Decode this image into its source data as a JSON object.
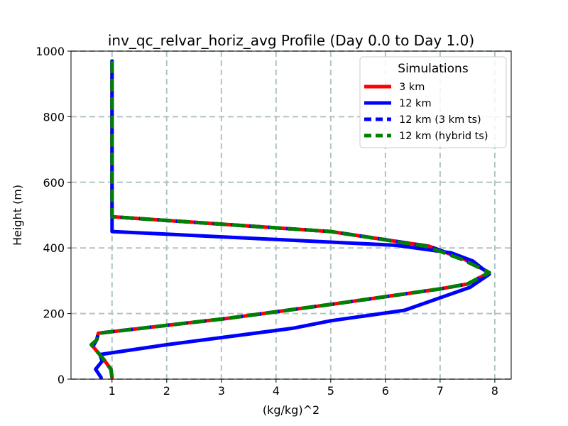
{
  "chart_data": {
    "type": "line",
    "title": "inv_qc_relvar_horiz_avg Profile (Day 0.0 to Day 1.0)",
    "xlabel": "(kg/kg)^2",
    "ylabel": "Height (m)",
    "xlim": [
      0.25,
      8.3
    ],
    "ylim": [
      0,
      1000
    ],
    "xticks": [
      1,
      2,
      3,
      4,
      5,
      6,
      7,
      8
    ],
    "yticks": [
      0,
      200,
      400,
      600,
      800,
      1000
    ],
    "grid": true,
    "legend": {
      "title": "Simulations",
      "placement": "top-right"
    },
    "series": [
      {
        "name": "3 km",
        "color": "#ff0000",
        "style": "solid",
        "points": [
          [
            1.0,
            5
          ],
          [
            0.98,
            30
          ],
          [
            0.85,
            60
          ],
          [
            0.65,
            100
          ],
          [
            0.72,
            120
          ],
          [
            0.75,
            140
          ],
          [
            3.1,
            185
          ],
          [
            5.1,
            230
          ],
          [
            7.0,
            275
          ],
          [
            7.5,
            290
          ],
          [
            7.9,
            325
          ],
          [
            7.45,
            365
          ],
          [
            6.8,
            405
          ],
          [
            5.0,
            450
          ],
          [
            1.0,
            495
          ],
          [
            1.0,
            600
          ],
          [
            1.0,
            800
          ],
          [
            1.0,
            970
          ]
        ]
      },
      {
        "name": "12 km",
        "color": "#0000ff",
        "style": "solid",
        "points": [
          [
            0.8,
            5
          ],
          [
            0.7,
            30
          ],
          [
            0.82,
            55
          ],
          [
            0.78,
            75
          ],
          [
            2.0,
            105
          ],
          [
            4.3,
            155
          ],
          [
            5.0,
            178
          ],
          [
            6.35,
            210
          ],
          [
            7.55,
            280
          ],
          [
            7.9,
            320
          ],
          [
            7.6,
            360
          ],
          [
            7.2,
            385
          ],
          [
            6.2,
            408
          ],
          [
            1.0,
            450
          ],
          [
            1.0,
            600
          ],
          [
            1.0,
            800
          ],
          [
            1.0,
            970
          ]
        ]
      },
      {
        "name": "12 km (3 km ts)",
        "color": "#0000ff",
        "style": "dashed",
        "points": [
          [
            1.0,
            5
          ],
          [
            0.98,
            30
          ],
          [
            0.85,
            60
          ],
          [
            0.65,
            100
          ],
          [
            0.72,
            120
          ],
          [
            0.75,
            140
          ],
          [
            3.1,
            185
          ],
          [
            5.1,
            230
          ],
          [
            7.0,
            275
          ],
          [
            7.5,
            290
          ],
          [
            7.9,
            325
          ],
          [
            7.45,
            365
          ],
          [
            6.8,
            405
          ],
          [
            5.0,
            450
          ],
          [
            1.0,
            495
          ],
          [
            1.0,
            600
          ],
          [
            1.0,
            800
          ],
          [
            1.0,
            970
          ]
        ]
      },
      {
        "name": "12 km (hybrid ts)",
        "color": "#008000",
        "style": "dashed",
        "points": [
          [
            1.0,
            5
          ],
          [
            0.98,
            30
          ],
          [
            0.85,
            60
          ],
          [
            0.62,
            105
          ],
          [
            0.72,
            120
          ],
          [
            0.77,
            140
          ],
          [
            3.1,
            185
          ],
          [
            5.1,
            230
          ],
          [
            7.0,
            275
          ],
          [
            7.5,
            290
          ],
          [
            7.9,
            325
          ],
          [
            7.4,
            365
          ],
          [
            6.75,
            405
          ],
          [
            5.0,
            450
          ],
          [
            1.0,
            495
          ],
          [
            1.0,
            600
          ],
          [
            1.0,
            800
          ],
          [
            1.0,
            970
          ]
        ]
      }
    ]
  }
}
